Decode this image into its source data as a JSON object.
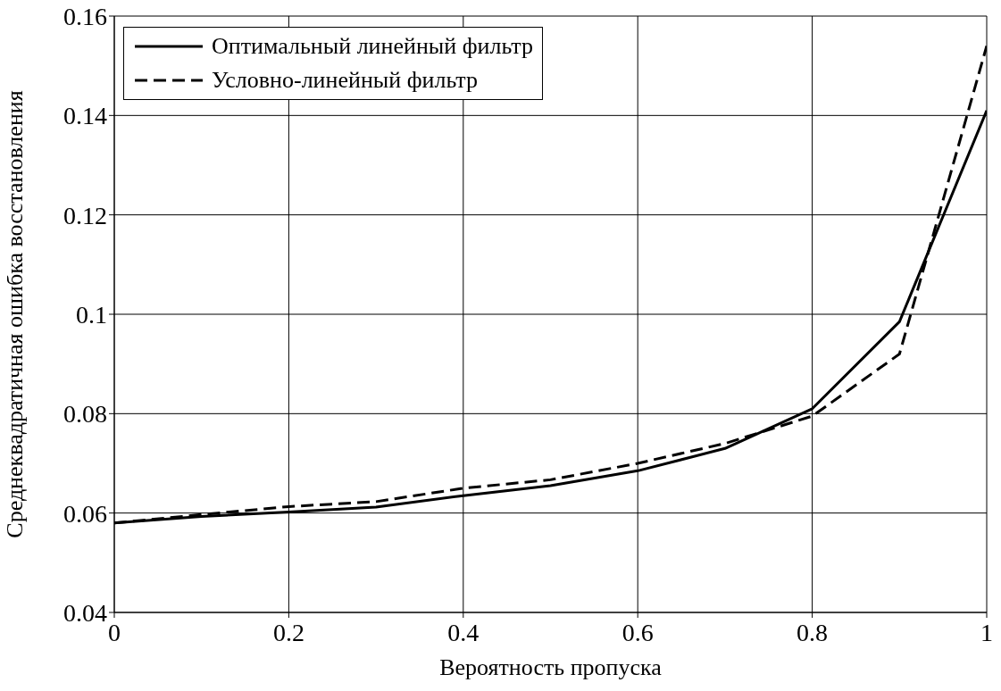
{
  "chart_data": {
    "type": "line",
    "xlabel": "Вероятность пропуска",
    "ylabel": "Среднеквадратичная ошибка восстановления",
    "x": [
      0,
      0.1,
      0.2,
      0.3,
      0.4,
      0.5,
      0.6,
      0.7,
      0.8,
      0.9,
      1
    ],
    "series": [
      {
        "name": "Оптимальный линейный фильтр",
        "color": "#000000",
        "line_style": "solid",
        "values": [
          0.058,
          0.0593,
          0.0602,
          0.0612,
          0.0635,
          0.0655,
          0.0685,
          0.073,
          0.081,
          0.0985,
          0.141
        ]
      },
      {
        "name": "Условно-линейный фильтр",
        "color": "#000000",
        "line_style": "dashed",
        "values": [
          0.058,
          0.0597,
          0.0613,
          0.0623,
          0.065,
          0.0667,
          0.07,
          0.074,
          0.0795,
          0.092,
          0.154
        ]
      }
    ],
    "xlim": [
      0,
      1
    ],
    "xticks": [
      0,
      0.2,
      0.4,
      0.6,
      0.8,
      1
    ],
    "ylim": [
      0.04,
      0.16
    ],
    "yticks": [
      0.04,
      0.06,
      0.08,
      0.1,
      0.12,
      0.14,
      0.16
    ],
    "grid": true,
    "legend": "top left",
    "marker": "none"
  }
}
